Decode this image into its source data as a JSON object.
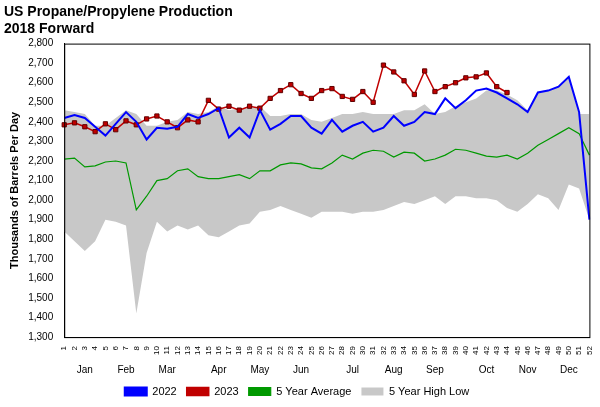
{
  "chart_data": {
    "type": "line",
    "title": "US Propane/Propylene Production",
    "subtitle": "2018 Forward",
    "y_label": "Thousands of Barrels Per Day",
    "categories": [
      1,
      2,
      3,
      4,
      5,
      6,
      7,
      8,
      9,
      10,
      11,
      12,
      13,
      14,
      15,
      16,
      17,
      18,
      19,
      20,
      21,
      22,
      23,
      24,
      25,
      26,
      27,
      28,
      29,
      30,
      31,
      32,
      33,
      34,
      35,
      36,
      37,
      38,
      39,
      40,
      41,
      42,
      43,
      44,
      45,
      46,
      47,
      48,
      49,
      50,
      51,
      52
    ],
    "x_group_labels": [
      null,
      null,
      "Jan",
      null,
      null,
      null,
      "Feb",
      null,
      null,
      null,
      "Mar",
      null,
      null,
      null,
      null,
      "Apr",
      null,
      null,
      null,
      "May",
      null,
      null,
      null,
      "Jun",
      null,
      null,
      null,
      null,
      "Jul",
      null,
      null,
      null,
      "Aug",
      null,
      null,
      null,
      "Sep",
      null,
      null,
      null,
      null,
      "Oct",
      null,
      null,
      null,
      "Nov",
      null,
      null,
      null,
      "Dec",
      null,
      null
    ],
    "ylim": [
      1300,
      2800
    ],
    "yticks": [
      {
        "value": 1300,
        "label": "1,300"
      },
      {
        "value": 1400,
        "label": "1,400"
      },
      {
        "value": 1500,
        "label": "1,500"
      },
      {
        "value": 1600,
        "label": "1,600"
      },
      {
        "value": 1700,
        "label": "1,700"
      },
      {
        "value": 1800,
        "label": "1,800"
      },
      {
        "value": 1900,
        "label": "1,900"
      },
      {
        "value": 2000,
        "label": "2,000"
      },
      {
        "value": 2100,
        "label": "2,100"
      },
      {
        "value": 2200,
        "label": "2,200"
      },
      {
        "value": 2300,
        "label": "2,300"
      },
      {
        "value": 2400,
        "label": "2,400"
      },
      {
        "value": 2500,
        "label": "2,500"
      },
      {
        "value": 2600,
        "label": "2,600"
      },
      {
        "value": 2700,
        "label": "2,700"
      },
      {
        "value": 2800,
        "label": "2,800"
      }
    ],
    "grid": false,
    "legend": "bottom",
    "series": [
      {
        "name": "5 Year High Low",
        "type": "area",
        "color": "#c8c8c8",
        "low": [
          1840,
          1790,
          1740,
          1790,
          1900,
          1890,
          1870,
          1420,
          1730,
          1890,
          1840,
          1870,
          1850,
          1870,
          1820,
          1810,
          1840,
          1870,
          1880,
          1940,
          1950,
          1970,
          1950,
          1930,
          1910,
          1940,
          1940,
          1940,
          1930,
          1940,
          1940,
          1950,
          1970,
          1990,
          1980,
          2000,
          2020,
          1980,
          2020,
          2020,
          2010,
          2010,
          2000,
          1960,
          1940,
          1980,
          2030,
          2010,
          1950,
          2080,
          2060,
          1900
        ],
        "high": [
          2460,
          2450,
          2440,
          2380,
          2380,
          2420,
          2460,
          2440,
          2380,
          2380,
          2400,
          2410,
          2450,
          2440,
          2450,
          2480,
          2460,
          2470,
          2470,
          2480,
          2430,
          2430,
          2440,
          2440,
          2410,
          2400,
          2420,
          2440,
          2440,
          2450,
          2440,
          2440,
          2440,
          2460,
          2460,
          2490,
          2440,
          2450,
          2480,
          2500,
          2520,
          2560,
          2560,
          2540,
          2510,
          2460,
          2550,
          2560,
          2580,
          2630,
          2440,
          2440
        ]
      },
      {
        "name": "5 Year Average",
        "color": "#009900",
        "values": [
          2210,
          2215,
          2170,
          2175,
          2195,
          2200,
          2190,
          1950,
          2020,
          2100,
          2110,
          2150,
          2160,
          2120,
          2110,
          2110,
          2120,
          2130,
          2110,
          2150,
          2150,
          2180,
          2190,
          2185,
          2165,
          2160,
          2190,
          2230,
          2210,
          2240,
          2255,
          2250,
          2220,
          2245,
          2240,
          2200,
          2210,
          2230,
          2260,
          2255,
          2240,
          2225,
          2220,
          2230,
          2210,
          2240,
          2280,
          2310,
          2340,
          2370,
          2340,
          2230
        ]
      },
      {
        "name": "2023",
        "color": "#c00000",
        "marker": "square",
        "values": [
          2385,
          2395,
          2375,
          2350,
          2390,
          2360,
          2405,
          2385,
          2415,
          2430,
          2400,
          2370,
          2410,
          2400,
          2510,
          2465,
          2480,
          2460,
          2480,
          2470,
          2520,
          2560,
          2590,
          2545,
          2520,
          2560,
          2570,
          2530,
          2515,
          2555,
          2500,
          2690,
          2655,
          2610,
          2540,
          2660,
          2555,
          2580,
          2600,
          2625,
          2630,
          2650,
          2580,
          2550,
          null,
          null,
          null,
          null,
          null,
          null,
          null,
          null
        ]
      },
      {
        "name": "2022",
        "color": "#0000ff",
        "values": [
          2420,
          2435,
          2420,
          2375,
          2330,
          2390,
          2450,
          2400,
          2310,
          2370,
          2365,
          2375,
          2440,
          2420,
          2440,
          2470,
          2320,
          2370,
          2320,
          2460,
          2360,
          2390,
          2430,
          2430,
          2370,
          2340,
          2410,
          2350,
          2380,
          2400,
          2350,
          2370,
          2430,
          2380,
          2400,
          2450,
          2440,
          2520,
          2470,
          2510,
          2560,
          2570,
          2550,
          2520,
          2490,
          2450,
          2550,
          2560,
          2580,
          2630,
          2450,
          1900
        ]
      }
    ]
  }
}
